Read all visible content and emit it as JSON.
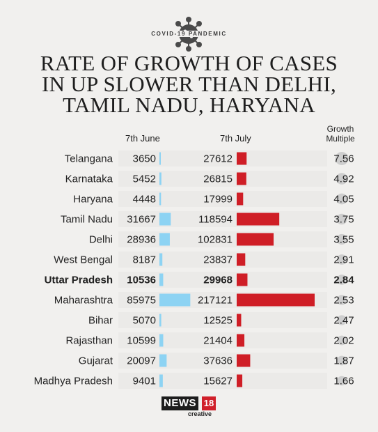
{
  "header": {
    "kicker": "COVID-19 PANDEMIC",
    "title_lines": [
      "RATE OF GROWTH OF CASES",
      "IN UP SLOWER THAN DELHI,",
      "TAMIL NADU, HARYANA"
    ]
  },
  "columns": {
    "june": "7th June",
    "july": "7th July",
    "growth_line1": "Growth",
    "growth_line2": "Multiple"
  },
  "chart_data": {
    "type": "table",
    "title": "RATE OF GROWTH OF CASES IN UP SLOWER THAN DELHI, TAMIL NADU, HARYANA",
    "columns": [
      "7th June",
      "7th July",
      "Growth Multiple"
    ],
    "highlight": "Uttar Pradesh",
    "rows": [
      {
        "state": "Telangana",
        "june": 3650,
        "july": 27612,
        "growth": "7.56"
      },
      {
        "state": "Karnataka",
        "june": 5452,
        "july": 26815,
        "growth": "4.92"
      },
      {
        "state": "Haryana",
        "june": 4448,
        "july": 17999,
        "growth": "4.05"
      },
      {
        "state": "Tamil Nadu",
        "june": 31667,
        "july": 118594,
        "growth": "3.75"
      },
      {
        "state": "Delhi",
        "june": 28936,
        "july": 102831,
        "growth": "3.55"
      },
      {
        "state": "West Bengal",
        "june": 8187,
        "july": 23837,
        "growth": "2.91"
      },
      {
        "state": "Uttar Pradesh",
        "june": 10536,
        "july": 29968,
        "growth": "2.84"
      },
      {
        "state": "Maharashtra",
        "june": 85975,
        "july": 217121,
        "growth": "2.53"
      },
      {
        "state": "Bihar",
        "june": 5070,
        "july": 12525,
        "growth": "2.47"
      },
      {
        "state": "Rajasthan",
        "june": 10599,
        "july": 21404,
        "growth": "2.02"
      },
      {
        "state": "Gujarat",
        "june": 20097,
        "july": 37636,
        "growth": "1.87"
      },
      {
        "state": "Madhya Pradesh",
        "june": 9401,
        "july": 15627,
        "growth": "1.66"
      }
    ],
    "colors": {
      "june_bar": "#8dd3f3",
      "july_bar": "#cf1e26",
      "growth_bubble": "#c6c6c6",
      "row_band": "#e6e5e3"
    }
  },
  "logo": {
    "brand": "NEWS",
    "number": "18",
    "sub": "creative"
  }
}
